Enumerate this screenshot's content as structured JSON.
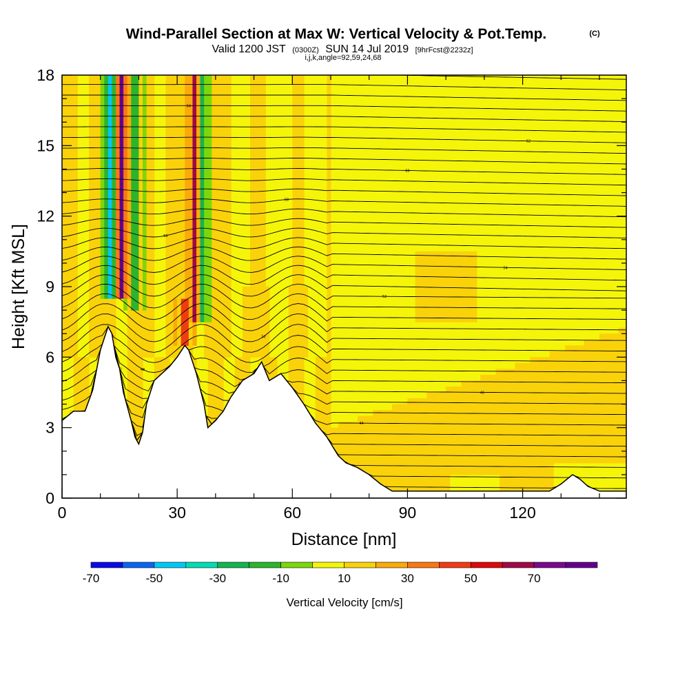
{
  "title": "Wind-Parallel Section at Max W: Vertical Velocity & Pot.Temp.",
  "title_mark": "(C)",
  "subtitle": {
    "valid": "Valid 1200 JST",
    "utc": "(0300Z)",
    "date": "SUN 14 Jul 2019",
    "forecast": "[9hrFcst@2232z]"
  },
  "indices": "i,j,k,angle=92,59,24,68",
  "chart_data": {
    "type": "heatmap",
    "xlabel": "Distance [nm]",
    "ylabel": "Height [Kft MSL]",
    "xlim": [
      0,
      147
    ],
    "ylim": [
      0,
      18
    ],
    "xticks": [
      0,
      30,
      60,
      90,
      120
    ],
    "yticks": [
      0,
      3,
      6,
      9,
      12,
      15,
      18
    ],
    "colorbar": {
      "title": "Vertical Velocity [cm/s]",
      "levels": [
        -80,
        -70,
        -60,
        -50,
        -40,
        -30,
        -20,
        -10,
        0,
        10,
        20,
        30,
        40,
        50,
        60,
        70,
        80
      ],
      "labels": [
        -70,
        -50,
        -30,
        -10,
        10,
        30,
        50,
        70
      ],
      "colors": [
        "#0a0ae6",
        "#0a64f0",
        "#00c8f5",
        "#00dcb4",
        "#14b450",
        "#2db42d",
        "#7dd70a",
        "#f5f50a",
        "#fad20a",
        "#faaa0a",
        "#fa7814",
        "#f03c14",
        "#dc0a0a",
        "#a00a46",
        "#780a8c",
        "#64008c"
      ]
    },
    "terrain_kft": [
      [
        0,
        3.3
      ],
      [
        3,
        3.7
      ],
      [
        6,
        3.7
      ],
      [
        8,
        4.6
      ],
      [
        10,
        6.3
      ],
      [
        12,
        7.3
      ],
      [
        13,
        7.0
      ],
      [
        14,
        6.0
      ],
      [
        15,
        5.5
      ],
      [
        16,
        4.5
      ],
      [
        18,
        3.3
      ],
      [
        19,
        2.6
      ],
      [
        20,
        2.3
      ],
      [
        21,
        2.8
      ],
      [
        22,
        4.0
      ],
      [
        24,
        5.0
      ],
      [
        26,
        5.3
      ],
      [
        28,
        5.6
      ],
      [
        30,
        6.0
      ],
      [
        32,
        6.5
      ],
      [
        33,
        6.3
      ],
      [
        35,
        5.3
      ],
      [
        37,
        4.0
      ],
      [
        38,
        3.0
      ],
      [
        40,
        3.3
      ],
      [
        42,
        3.7
      ],
      [
        44,
        4.3
      ],
      [
        47,
        5.0
      ],
      [
        50,
        5.3
      ],
      [
        52,
        5.8
      ],
      [
        54,
        5.0
      ],
      [
        57,
        5.3
      ],
      [
        60,
        4.7
      ],
      [
        63,
        4.0
      ],
      [
        66,
        3.2
      ],
      [
        69,
        2.6
      ],
      [
        72,
        1.8
      ],
      [
        74,
        1.5
      ],
      [
        77,
        1.3
      ],
      [
        80,
        1.0
      ],
      [
        83,
        0.6
      ],
      [
        86,
        0.3
      ],
      [
        90,
        0.3
      ],
      [
        95,
        0.3
      ],
      [
        100,
        0.3
      ],
      [
        110,
        0.3
      ],
      [
        120,
        0.3
      ],
      [
        127,
        0.3
      ],
      [
        130,
        0.6
      ],
      [
        133,
        1.0
      ],
      [
        135,
        0.8
      ],
      [
        137,
        0.5
      ],
      [
        140,
        0.3
      ],
      [
        147,
        0.3
      ]
    ],
    "features": [
      {
        "kind": "updraft_core",
        "x": 15.5,
        "y0": 8.5,
        "y1": 18,
        "w_cms": 70
      },
      {
        "kind": "downdraft_core",
        "x": 12.5,
        "y0": 8.5,
        "y1": 18,
        "w_cms": -55
      },
      {
        "kind": "updraft_core",
        "x": 34.5,
        "y0": 7.5,
        "y1": 18,
        "w_cms": 50
      },
      {
        "kind": "downdraft_core",
        "x": 36.5,
        "y0": 7.5,
        "y1": 18,
        "w_cms": -35
      },
      {
        "kind": "downdraft_core",
        "x": 19.0,
        "y0": 8.0,
        "y1": 18,
        "w_cms": -30
      },
      {
        "kind": "updraft_core",
        "x": 32.0,
        "y0": 6.5,
        "y1": 8.5,
        "w_cms": 50
      }
    ],
    "theta_labels": [
      "40",
      "42",
      "44",
      "46",
      "48",
      "50",
      "52",
      "54",
      "56",
      "58",
      "60",
      "62",
      "64"
    ]
  }
}
